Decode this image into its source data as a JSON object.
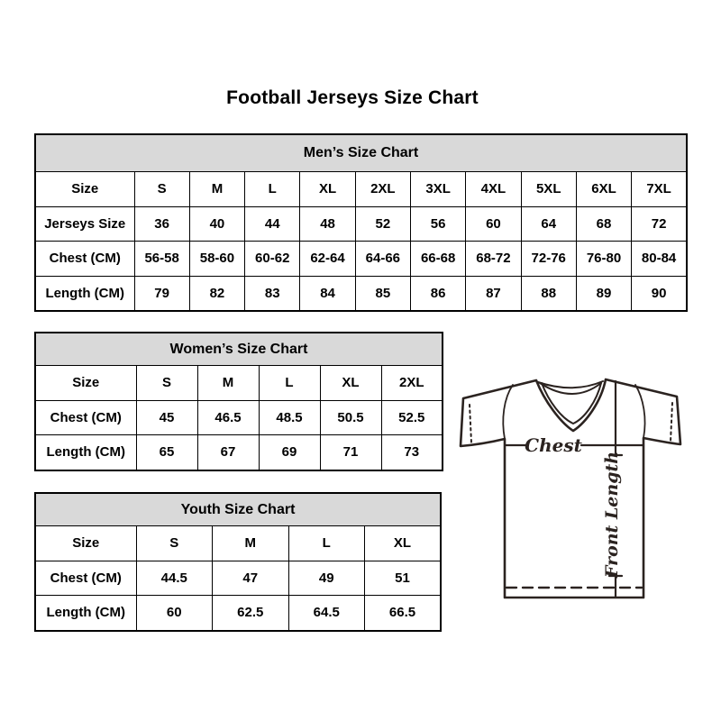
{
  "page": {
    "title": "Football Jerseys Size Chart"
  },
  "tables": [
    {
      "title": "Men’s Size Chart",
      "rows": [
        [
          "Size",
          "S",
          "M",
          "L",
          "XL",
          "2XL",
          "3XL",
          "4XL",
          "5XL",
          "6XL",
          "7XL"
        ],
        [
          "Jerseys Size",
          "36",
          "40",
          "44",
          "48",
          "52",
          "56",
          "60",
          "64",
          "68",
          "72"
        ],
        [
          "Chest (CM)",
          "56-58",
          "58-60",
          "60-62",
          "62-64",
          "64-66",
          "66-68",
          "68-72",
          "72-76",
          "76-80",
          "80-84"
        ],
        [
          "Length (CM)",
          "79",
          "82",
          "83",
          "84",
          "85",
          "86",
          "87",
          "88",
          "89",
          "90"
        ]
      ]
    },
    {
      "title": "Women’s Size Chart",
      "rows": [
        [
          "Size",
          "S",
          "M",
          "L",
          "XL",
          "2XL"
        ],
        [
          "Chest (CM)",
          "45",
          "46.5",
          "48.5",
          "50.5",
          "52.5"
        ],
        [
          "Length (CM)",
          "65",
          "67",
          "69",
          "71",
          "73"
        ]
      ]
    },
    {
      "title": "Youth Size Chart",
      "rows": [
        [
          "Size",
          "S",
          "M",
          "L",
          "XL"
        ],
        [
          "Chest (CM)",
          "44.5",
          "47",
          "49",
          "51"
        ],
        [
          "Length (CM)",
          "60",
          "62.5",
          "64.5",
          "66.5"
        ]
      ]
    }
  ],
  "diagram": {
    "chest_label": "Chest",
    "front_length_label": "Front Length"
  },
  "colors": {
    "header_bg": "#d9d9d9",
    "table_border": "#000000",
    "text": "#000000",
    "diagram_stroke": "#2b2320"
  }
}
